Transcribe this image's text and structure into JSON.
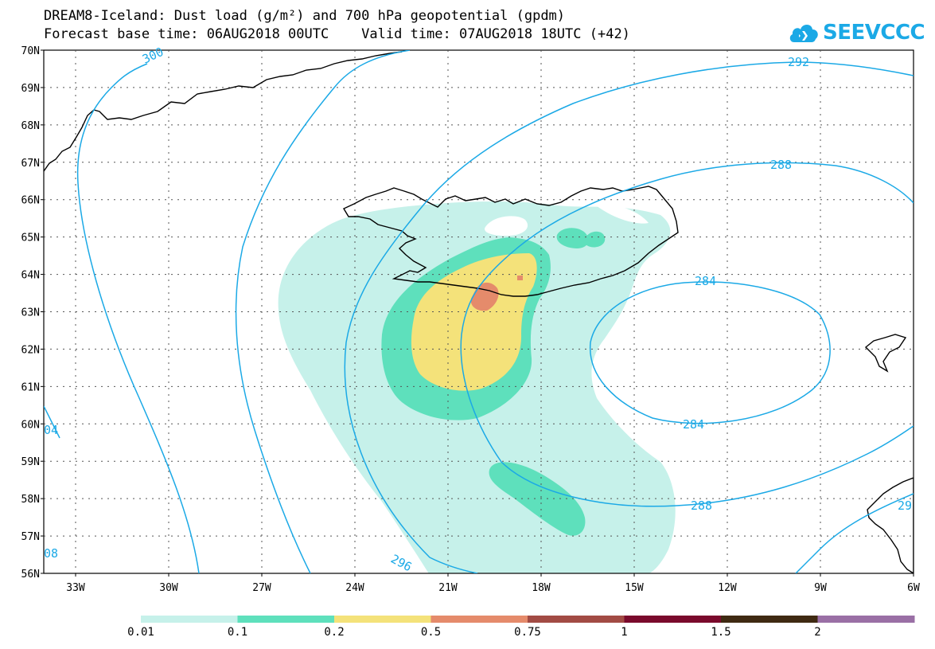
{
  "title": {
    "line1": "DREAM8-Iceland: Dust load (g/m²) and 700 hPa geopotential (gpdm)",
    "line2": "Forecast base time: 06AUG2018 00UTC    Valid time: 07AUG2018 18UTC (+42)"
  },
  "logo": {
    "text": "SEEVCCC",
    "icon": "cloud-logo-icon",
    "color": "#1ba9e6"
  },
  "map": {
    "lat_labels": [
      "70N",
      "69N",
      "68N",
      "67N",
      "66N",
      "65N",
      "64N",
      "63N",
      "62N",
      "61N",
      "60N",
      "59N",
      "58N",
      "57N",
      "56N"
    ],
    "lon_labels": [
      "33W",
      "30W",
      "27W",
      "24W",
      "21W",
      "18W",
      "15W",
      "12W",
      "9W",
      "6W"
    ],
    "contour_labels": [
      "300",
      "292",
      "288",
      "284",
      "284",
      "288",
      "296",
      "04",
      "08",
      "29"
    ],
    "contour_color": "#1ba9e6",
    "coastline_color": "#000000"
  },
  "colorbar": {
    "labels": [
      "0.01",
      "0.1",
      "0.2",
      "0.5",
      "0.75",
      "1",
      "1.5",
      "2"
    ],
    "colors": [
      "#c6f1ea",
      "#5ee0bc",
      "#f4e27a",
      "#e58b6b",
      "#a24b44",
      "#7a0a2c",
      "#3f2a12",
      "#9a6fa5"
    ]
  }
}
